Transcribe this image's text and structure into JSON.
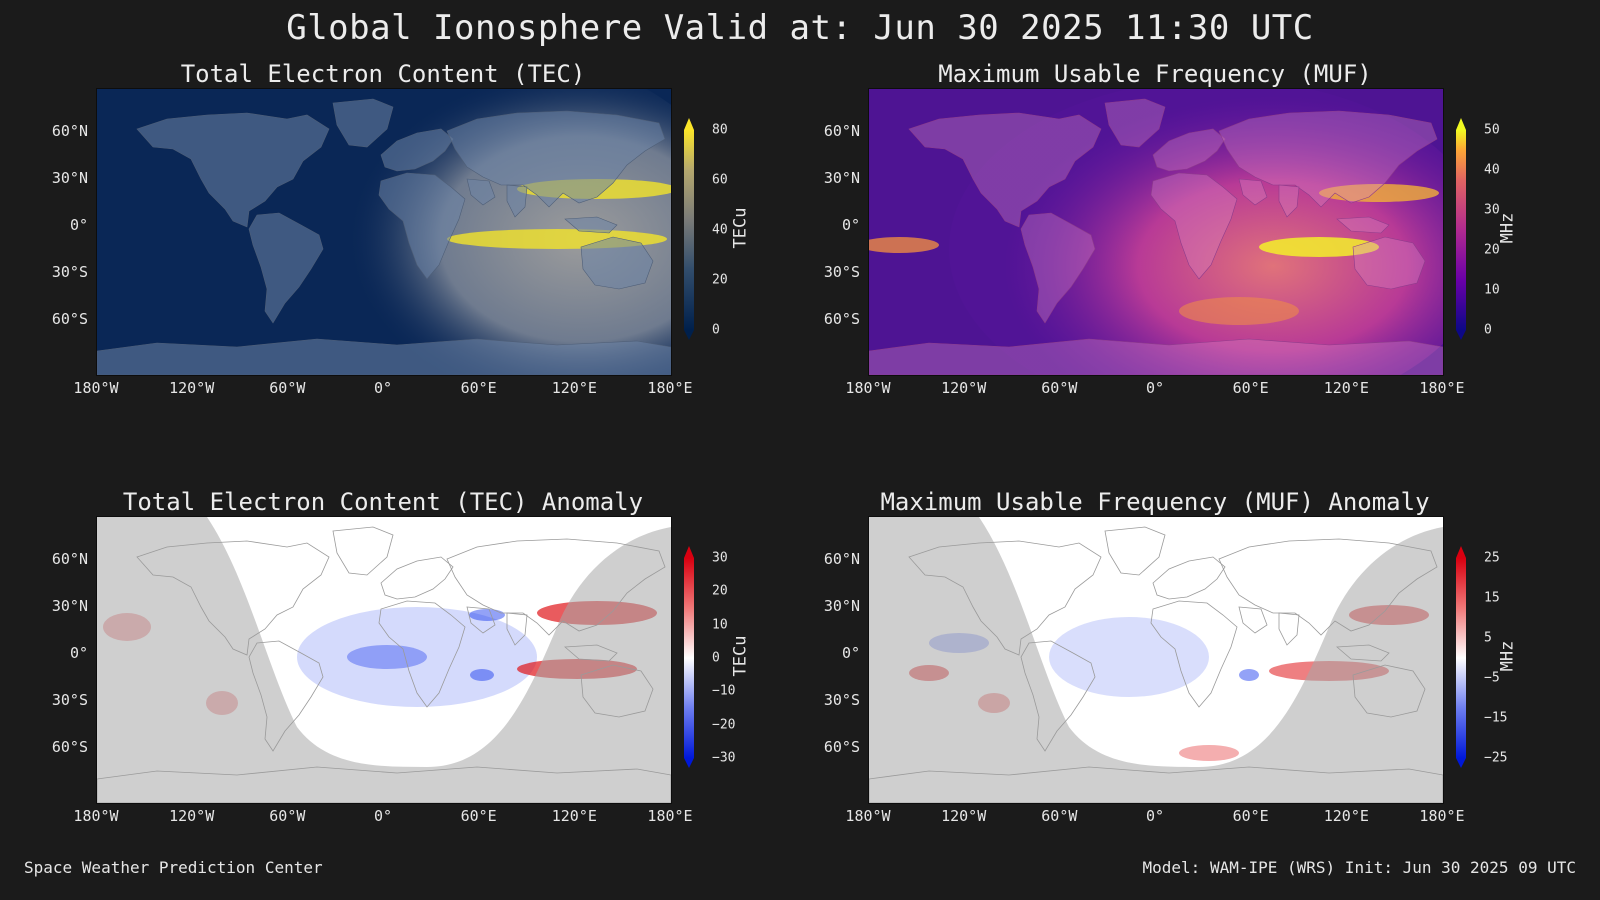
{
  "title": "Global Ionosphere Valid at: Jun 30 2025 11:30 UTC",
  "lat_labels": [
    "60°N",
    "30°N",
    "0°",
    "30°S",
    "60°S"
  ],
  "lon_labels": [
    "180°W",
    "120°W",
    "60°W",
    "0°",
    "60°E",
    "120°E",
    "180°E"
  ],
  "panels": {
    "tec": {
      "title": "Total Electron Content (TEC)",
      "cbar_label": "TECu",
      "cbar_ticks": [
        "80",
        "60",
        "40",
        "20",
        "0"
      ],
      "colors": {
        "low": "#0a2756",
        "mid": "#8a8a8a",
        "high": "#f2e42b"
      }
    },
    "muf": {
      "title": "Maximum Usable Frequency (MUF)",
      "cbar_label": "MHz",
      "cbar_ticks": [
        "50",
        "40",
        "30",
        "20",
        "10",
        "0"
      ],
      "colors": {
        "low": "#1a0a7a",
        "mid": "#c43c8f",
        "high": "#f3f02a"
      }
    },
    "tec_anom": {
      "title": "Total Electron Content (TEC) Anomaly",
      "cbar_label": "TECu",
      "cbar_ticks": [
        "30",
        "20",
        "10",
        "0",
        "−10",
        "−20",
        "−30"
      ],
      "colors": {
        "neg": "#1030ee",
        "zero": "#ffffff",
        "pos": "#e0161a"
      }
    },
    "muf_anom": {
      "title": "Maximum Usable Frequency (MUF) Anomaly",
      "cbar_label": "MHz",
      "cbar_ticks": [
        "25",
        "15",
        "5",
        "−5",
        "−15",
        "−25"
      ],
      "colors": {
        "neg": "#1030ee",
        "zero": "#ffffff",
        "pos": "#e0161a"
      }
    }
  },
  "footer": {
    "left": "Space Weather Prediction Center",
    "right": "Model: WAM-IPE (WRS) Init: Jun 30 2025 09 UTC"
  }
}
